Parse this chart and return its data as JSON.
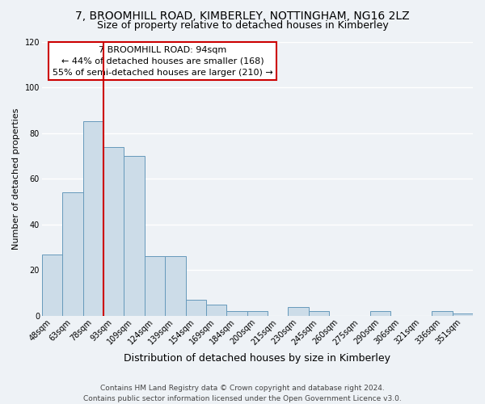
{
  "title": "7, BROOMHILL ROAD, KIMBERLEY, NOTTINGHAM, NG16 2LZ",
  "subtitle": "Size of property relative to detached houses in Kimberley",
  "xlabel": "Distribution of detached houses by size in Kimberley",
  "ylabel": "Number of detached properties",
  "bar_color": "#ccdce8",
  "bar_edge_color": "#6699bb",
  "background_color": "#eef2f6",
  "plot_bg_color": "#eef2f6",
  "categories": [
    "48sqm",
    "63sqm",
    "78sqm",
    "93sqm",
    "109sqm",
    "124sqm",
    "139sqm",
    "154sqm",
    "169sqm",
    "184sqm",
    "200sqm",
    "215sqm",
    "230sqm",
    "245sqm",
    "260sqm",
    "275sqm",
    "290sqm",
    "306sqm",
    "321sqm",
    "336sqm",
    "351sqm"
  ],
  "values": [
    27,
    54,
    85,
    74,
    70,
    26,
    26,
    7,
    5,
    2,
    2,
    0,
    4,
    2,
    0,
    0,
    2,
    0,
    0,
    2,
    1
  ],
  "ylim": [
    0,
    120
  ],
  "yticks": [
    0,
    20,
    40,
    60,
    80,
    100,
    120
  ],
  "vline_color": "#cc0000",
  "vline_x_index": 3,
  "annotation_title": "7 BROOMHILL ROAD: 94sqm",
  "annotation_line1": "← 44% of detached houses are smaller (168)",
  "annotation_line2": "55% of semi-detached houses are larger (210) →",
  "annotation_box_color": "#ffffff",
  "annotation_box_edge_color": "#cc0000",
  "footer_line1": "Contains HM Land Registry data © Crown copyright and database right 2024.",
  "footer_line2": "Contains public sector information licensed under the Open Government Licence v3.0.",
  "title_fontsize": 10,
  "subtitle_fontsize": 9,
  "xlabel_fontsize": 9,
  "ylabel_fontsize": 8,
  "tick_fontsize": 7,
  "annotation_fontsize": 8,
  "footer_fontsize": 6.5
}
